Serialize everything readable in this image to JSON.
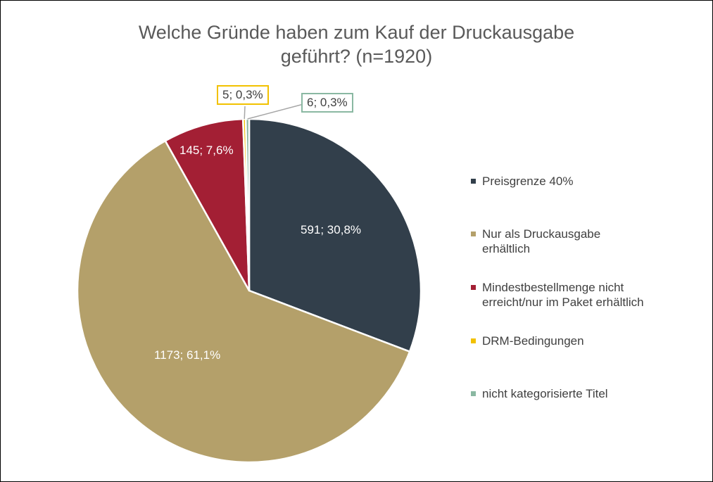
{
  "chart_data": {
    "type": "pie",
    "title": "Welche Gründe haben zum Kauf der Druckausgabe geführt? (n=1920)",
    "title_lines": [
      "Welche Gründe haben zum Kauf der Druckausgabe",
      "geführt? (n=1920)"
    ],
    "legend_position": "right",
    "slices": [
      {
        "name": "Preisgrenze 40%",
        "value": 591,
        "percent": 30.8,
        "label": "591; 30,8%",
        "color": "#323f4b"
      },
      {
        "name": "Nur als Druckausgabe erhältlich",
        "value": 1173,
        "percent": 61.1,
        "label": "1173; 61,1%",
        "color": "#b4a06a"
      },
      {
        "name": "Mindestbestellmenge nicht erreicht/nur im Paket erhältlich",
        "value": 145,
        "percent": 7.6,
        "label": "145; 7,6%",
        "color": "#a31f34"
      },
      {
        "name": "DRM-Bedingungen",
        "value": 5,
        "percent": 0.3,
        "label": "5; 0,3%",
        "color": "#f2c100"
      },
      {
        "name": "nicht kategorisierte Titel",
        "value": 6,
        "percent": 0.3,
        "label": "6; 0,3%",
        "color": "#8ab8a2"
      }
    ]
  }
}
